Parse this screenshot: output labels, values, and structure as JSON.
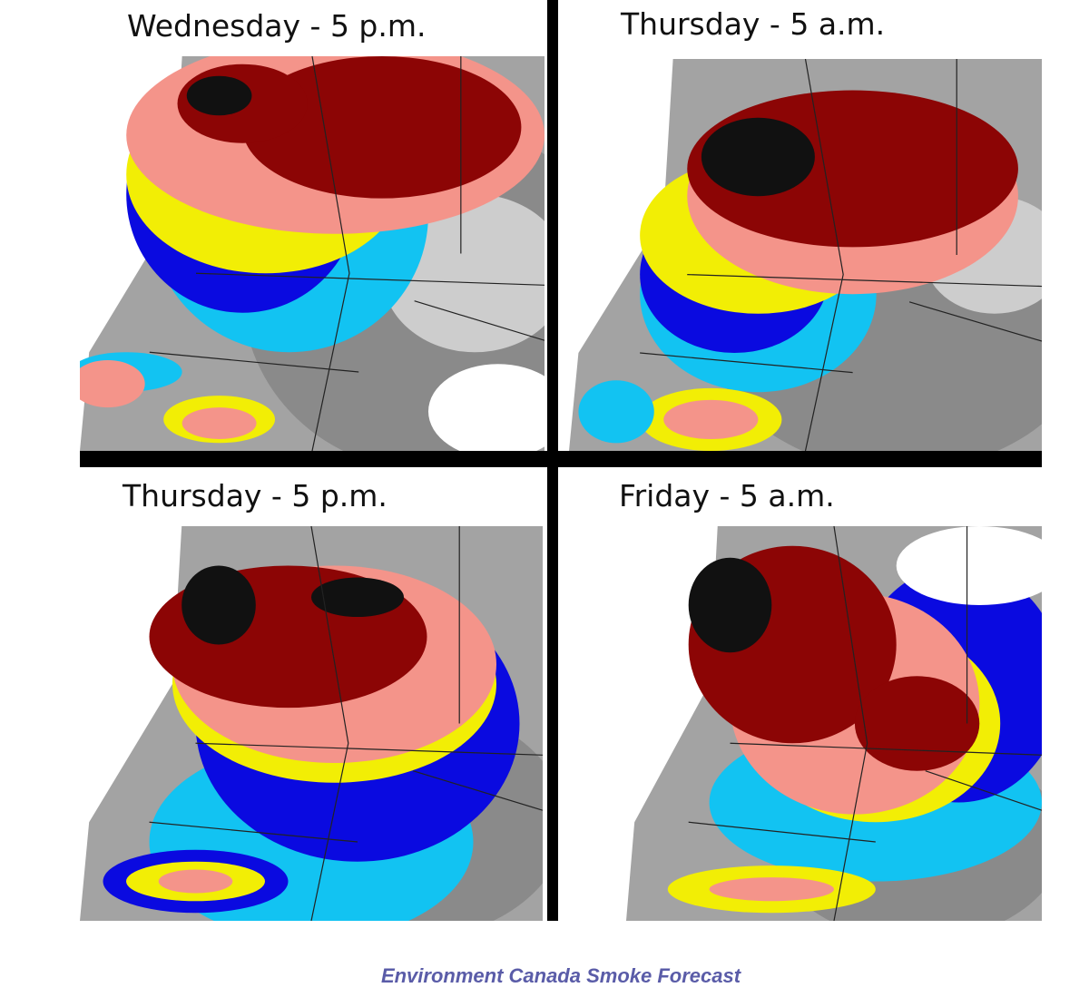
{
  "panels": [
    {
      "title": "Wednesday - 5 p.m."
    },
    {
      "title": "Thursday - 5 a.m."
    },
    {
      "title": "Thursday - 5 p.m."
    },
    {
      "title": "Friday - 5 a.m."
    }
  ],
  "caption": "Environment Canada Smoke Forecast"
}
